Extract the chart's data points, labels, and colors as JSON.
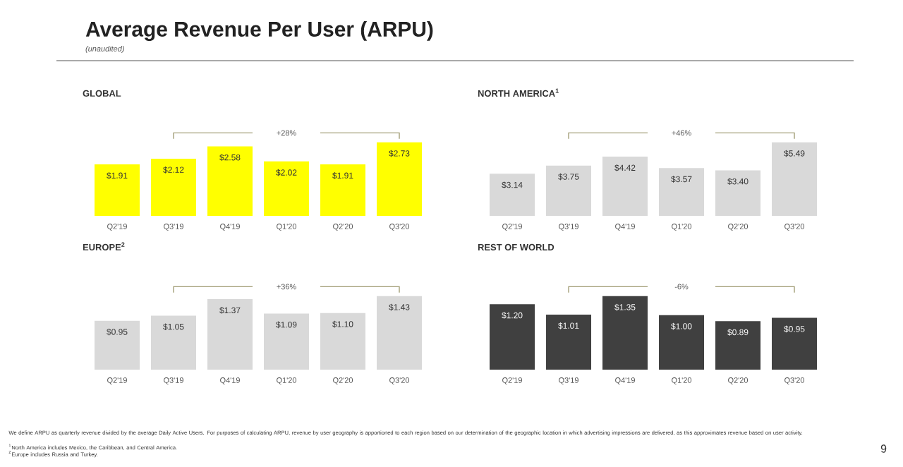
{
  "chart_data": [
    {
      "type": "other",
      "title": "Average Revenue Per User (ARPU)",
      "subtitle": "(unaudited)",
      "annotations": [
        "We define ARPU as quarterly revenue divided by the average Daily Active Users. For purposes of calculating ARPU, revenue by user geography is apportioned to each region based on our determination of the geographic location in which advertising impressions are delivered, as this approximates revenue based on user activity.",
        "$^{1}$North America includes Mexico, the Caribbean, and Central America.",
        "$^{2}$Europe includes Russia and Turkey.",
        "9"
      ]
    },
    {
      "type": "bar",
      "title": "GLOBAL",
      "categories": [
        "Q2'19",
        "Q3'19",
        "Q4'19",
        "Q1'20",
        "Q2'20",
        "Q3'20"
      ],
      "values": [
        1.91,
        2.12,
        2.58,
        2.02,
        1.91,
        2.73
      ],
      "value_labels": [
        "$1.91",
        "$2.12",
        "$2.58",
        "$2.02",
        "$1.91",
        "$2.73"
      ],
      "color": "#ffff00",
      "tick_labels": "x",
      "annotations": [
        "+28%"
      ]
    },
    {
      "type": "bar",
      "title": "NORTH AMERICA$^{1}$",
      "categories": [
        "Q2'19",
        "Q3'19",
        "Q4'19",
        "Q1'20",
        "Q2'20",
        "Q3'20"
      ],
      "values": [
        3.14,
        3.75,
        4.42,
        3.57,
        3.4,
        5.49
      ],
      "value_labels": [
        "$3.14",
        "$3.75",
        "$4.42",
        "$3.57",
        "$3.40",
        "$5.49"
      ],
      "color": "#d9d9d9",
      "tick_labels": "x",
      "annotations": [
        "+46%"
      ]
    },
    {
      "type": "bar",
      "title": "EUROPE$^{2}$",
      "categories": [
        "Q2'19",
        "Q3'19",
        "Q4'19",
        "Q1'20",
        "Q2'20",
        "Q3'20"
      ],
      "values": [
        0.95,
        1.05,
        1.37,
        1.09,
        1.1,
        1.43
      ],
      "value_labels": [
        "$0.95",
        "$1.05",
        "$1.37",
        "$1.09",
        "$1.10",
        "$1.43"
      ],
      "color": "#d9d9d9",
      "tick_labels": "x",
      "annotations": [
        "+36%"
      ]
    },
    {
      "type": "bar",
      "title": "REST OF WORLD",
      "categories": [
        "Q2'19",
        "Q3'19",
        "Q4'19",
        "Q1'20",
        "Q2'20",
        "Q3'20"
      ],
      "values": [
        1.2,
        1.01,
        1.35,
        1.0,
        0.89,
        0.95
      ],
      "value_labels": [
        "$1.20",
        "$1.01",
        "$1.35",
        "$1.00",
        "$0.89",
        "$0.95"
      ],
      "color": "#404040",
      "tick_labels": "x",
      "annotations": [
        "-6%"
      ]
    }
  ]
}
